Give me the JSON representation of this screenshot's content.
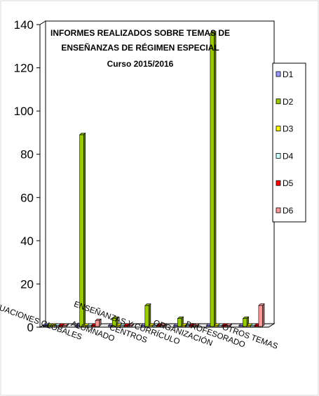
{
  "chart_data": {
    "type": "bar",
    "title": [
      "INFORMES REALIZADOS SOBRE TEMAS DE",
      "ENSEÑANZAS DE RÉGIMEN ESPECIAL",
      "Curso 2015/2016"
    ],
    "xlabel": "",
    "ylabel": "",
    "ylim": [
      0,
      140
    ],
    "yticks": [
      0,
      20,
      40,
      60,
      80,
      100,
      120,
      140
    ],
    "grid": false,
    "legend_position": "right",
    "categories": [
      "ACTUACIONES GLOBALES",
      "ALUMNADO",
      "CENTROS",
      "ENSEÑANZAS Y CURRÍCULO",
      "ORGANIZACIÓN",
      "PROFESORADO",
      "OTROS TEMAS"
    ],
    "series": [
      {
        "name": "D1",
        "color": "#9999ff",
        "values": [
          0,
          0,
          0,
          0,
          0,
          0,
          0
        ]
      },
      {
        "name": "D2",
        "color": "#99cc00",
        "values": [
          0,
          89,
          4,
          10,
          4,
          136,
          4
        ]
      },
      {
        "name": "D3",
        "color": "#ffff00",
        "values": [
          0,
          0,
          0,
          0,
          0,
          0,
          0
        ]
      },
      {
        "name": "D4",
        "color": "#ccffff",
        "values": [
          0,
          0,
          0,
          0,
          0,
          0,
          0
        ]
      },
      {
        "name": "D5",
        "color": "#ff0000",
        "values": [
          0,
          0,
          0,
          0,
          0,
          0,
          0
        ]
      },
      {
        "name": "D6",
        "color": "#ff9999",
        "values": [
          0,
          3,
          0,
          0,
          0,
          0,
          10
        ]
      }
    ]
  }
}
